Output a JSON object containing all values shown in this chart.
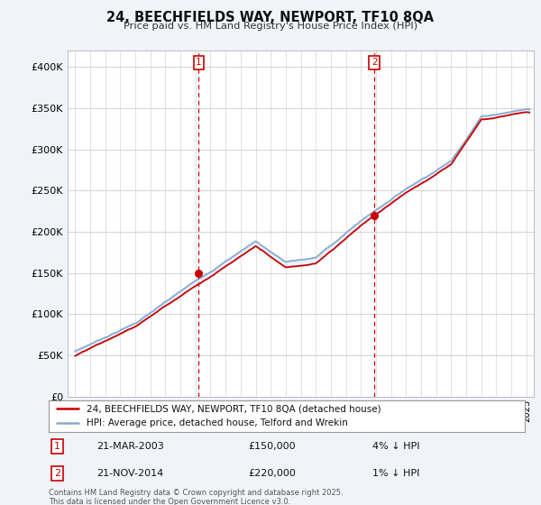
{
  "title": "24, BEECHFIELDS WAY, NEWPORT, TF10 8QA",
  "subtitle": "Price paid vs. HM Land Registry's House Price Index (HPI)",
  "legend_line1": "24, BEECHFIELDS WAY, NEWPORT, TF10 8QA (detached house)",
  "legend_line2": "HPI: Average price, detached house, Telford and Wrekin",
  "transaction1_date": "21-MAR-2003",
  "transaction1_price": "£150,000",
  "transaction1_note": "4% ↓ HPI",
  "transaction2_date": "21-NOV-2014",
  "transaction2_price": "£220,000",
  "transaction2_note": "1% ↓ HPI",
  "footer": "Contains HM Land Registry data © Crown copyright and database right 2025.\nThis data is licensed under the Open Government Licence v3.0.",
  "price_color": "#cc0000",
  "hpi_color": "#88aacc",
  "fill_color": "#ddeeff",
  "background_color": "#f0f4f8",
  "plot_bg_color": "#ffffff",
  "marker1_x": 2003.22,
  "marker2_x": 2014.9,
  "marker1_y": 150000,
  "marker2_y": 220000,
  "ylim": [
    0,
    420000
  ],
  "xlim": [
    1994.5,
    2025.5
  ]
}
